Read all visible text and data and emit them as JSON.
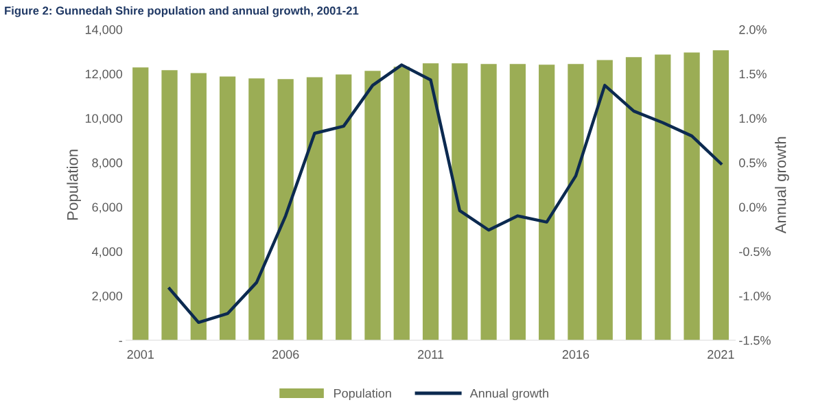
{
  "chart_data": {
    "type": "bar",
    "title": "Figure 2: Gunnedah Shire population and annual growth, 2001-21",
    "categories": [
      "2001",
      null,
      null,
      null,
      null,
      "2006",
      null,
      null,
      null,
      null,
      "2011",
      null,
      null,
      null,
      null,
      "2016",
      null,
      null,
      null,
      null,
      "2021"
    ],
    "series": [
      {
        "name": "Population",
        "color": "#9bad55",
        "values": [
          12290,
          12160,
          12030,
          11880,
          11790,
          11760,
          11850,
          11970,
          12130,
          12320,
          12470,
          12470,
          12440,
          12440,
          12410,
          12440,
          12620,
          12750,
          12870,
          12960,
          13060
        ]
      },
      {
        "name": "Annual growth",
        "type": "line",
        "axis": "y2",
        "color": "#0c2a50",
        "values": [
          null,
          -0.92,
          -1.3,
          -1.2,
          -0.85,
          -0.1,
          0.83,
          0.91,
          1.37,
          1.6,
          1.43,
          -0.04,
          -0.26,
          -0.1,
          -0.17,
          0.35,
          1.37,
          1.08,
          0.95,
          0.8,
          0.49
        ]
      }
    ],
    "ylabel": "Population",
    "y2label": "Annual growth",
    "ylim": [
      0,
      14000
    ],
    "yticks": [
      {
        "value": 0,
        "label": "-"
      },
      {
        "value": 2000,
        "label": "2,000"
      },
      {
        "value": 4000,
        "label": "4,000"
      },
      {
        "value": 6000,
        "label": "6,000"
      },
      {
        "value": 8000,
        "label": "8,000"
      },
      {
        "value": 10000,
        "label": "10,000"
      },
      {
        "value": 12000,
        "label": "12,000"
      },
      {
        "value": 14000,
        "label": "14,000"
      }
    ],
    "y2lim": [
      -1.5,
      2.0
    ],
    "y2ticks": [
      {
        "value": -1.5,
        "label": "-1.5%"
      },
      {
        "value": -1.0,
        "label": "-1.0%"
      },
      {
        "value": -0.5,
        "label": "-0.5%"
      },
      {
        "value": 0.0,
        "label": "0.0%"
      },
      {
        "value": 0.5,
        "label": "0.5%"
      },
      {
        "value": 1.0,
        "label": "1.0%"
      },
      {
        "value": 1.5,
        "label": "1.5%"
      },
      {
        "value": 2.0,
        "label": "2.0%"
      }
    ],
    "legend": "bottom",
    "grid": false,
    "marker": "none",
    "line_style": "solid"
  }
}
